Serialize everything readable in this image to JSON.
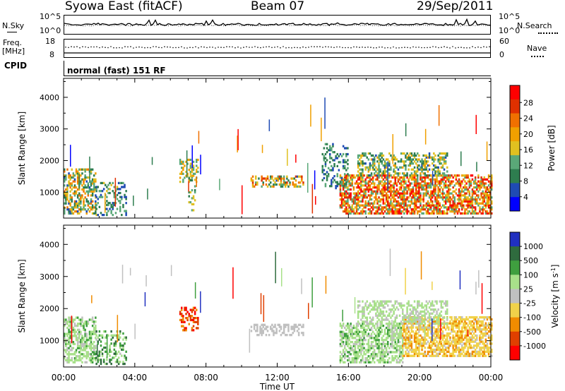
{
  "header": {
    "station": "Syowa East (fitACF)",
    "beam": "Beam 07",
    "date": "29/Sep/2011"
  },
  "left_labels": {
    "nsky": "N.Sky",
    "freq": "Freq.",
    "freq_unit": "[MHz]",
    "cpid": "CPID"
  },
  "right_labels": {
    "nsearch": "N.Search",
    "nave": "Nave"
  },
  "mode_text": "normal (fast) 151 RF",
  "noise_ticks_left": [
    "10^5",
    "10^0"
  ],
  "noise_ticks_right": [
    "10^5",
    "10^0"
  ],
  "freq_ticks": [
    "18",
    "8"
  ],
  "nave_ticks": [
    "60",
    "0"
  ],
  "colors": {
    "power_scale": [
      "#0000ff",
      "#1f4bb4",
      "#2e7d4f",
      "#5aa878",
      "#e0c020",
      "#f0a000",
      "#f07000",
      "#e03000",
      "#ff0000"
    ],
    "velocity_scale": [
      "#2030c0",
      "#2f6b3e",
      "#3f9f3f",
      "#a8e08a",
      "#c0c0c0",
      "#f0d24a",
      "#f08c00",
      "#e04000",
      "#ff0000"
    ]
  },
  "chart_data": [
    {
      "type": "heatmap",
      "name": "power",
      "xlabel": "Time UT",
      "ylabel": "Slant Range [km]",
      "x_ticks": [
        "00:00",
        "04:00",
        "08:00",
        "12:00",
        "16:00",
        "20:00",
        "00:00"
      ],
      "xlim": [
        0,
        24
      ],
      "ylim": [
        180,
        4600
      ],
      "y_ticks": [
        1000,
        2000,
        3000,
        4000
      ],
      "colorbar_label": "Power [dB]",
      "colorbar_ticks": [
        "4",
        "8",
        "12",
        "16",
        "20",
        "24",
        "28"
      ],
      "colorbar_range": [
        0,
        30
      ],
      "patches": [
        {
          "t0": 0.0,
          "t1": 1.8,
          "r0": 300,
          "r1": 1700,
          "density": 0.55,
          "vmin": 6,
          "vmax": 22
        },
        {
          "t0": 1.8,
          "t1": 3.5,
          "r0": 250,
          "r1": 1300,
          "density": 0.35,
          "vmin": 4,
          "vmax": 14
        },
        {
          "t0": 6.5,
          "t1": 7.5,
          "r0": 1300,
          "r1": 2000,
          "density": 0.4,
          "vmin": 10,
          "vmax": 20
        },
        {
          "t0": 7.0,
          "t1": 7.4,
          "r0": 400,
          "r1": 1500,
          "density": 0.25,
          "vmin": 8,
          "vmax": 16
        },
        {
          "t0": 10.5,
          "t1": 13.5,
          "r0": 1150,
          "r1": 1500,
          "density": 0.5,
          "vmin": 6,
          "vmax": 26
        },
        {
          "t0": 15.5,
          "t1": 24.0,
          "r0": 300,
          "r1": 1500,
          "density": 0.65,
          "vmin": 10,
          "vmax": 30
        },
        {
          "t0": 16.5,
          "t1": 21.5,
          "r0": 1500,
          "r1": 2200,
          "density": 0.45,
          "vmin": 6,
          "vmax": 18
        },
        {
          "t0": 14.5,
          "t1": 16.0,
          "r0": 1100,
          "r1": 2500,
          "density": 0.3,
          "vmin": 4,
          "vmax": 12
        }
      ]
    },
    {
      "type": "heatmap",
      "name": "velocity",
      "xlabel": "Time UT",
      "ylabel": "Slant Range [km]",
      "x_ticks": [
        "00:00",
        "04:00",
        "08:00",
        "12:00",
        "16:00",
        "20:00",
        "00:00"
      ],
      "xlim": [
        0,
        24
      ],
      "ylim": [
        180,
        4600
      ],
      "y_ticks": [
        1000,
        2000,
        3000,
        4000
      ],
      "colorbar_label": "Velocity [m s-1]",
      "colorbar_ticks": [
        "1000",
        "500",
        "100",
        "25",
        "-25",
        "-100",
        "-500",
        "-1000"
      ],
      "colorbar_range": [
        -1000,
        1000
      ],
      "patches": [
        {
          "t0": 0.0,
          "t1": 1.8,
          "r0": 300,
          "r1": 1700,
          "density": 0.55,
          "vmin": 50,
          "vmax": 400
        },
        {
          "t0": 1.8,
          "t1": 3.5,
          "r0": 250,
          "r1": 1300,
          "density": 0.35,
          "vmin": 100,
          "vmax": 700
        },
        {
          "t0": 6.5,
          "t1": 7.5,
          "r0": 1300,
          "r1": 2000,
          "density": 0.4,
          "vmin": -900,
          "vmax": -400
        },
        {
          "t0": 10.5,
          "t1": 13.5,
          "r0": 1150,
          "r1": 1500,
          "density": 0.5,
          "vmin": -20,
          "vmax": 20
        },
        {
          "t0": 15.5,
          "t1": 19.0,
          "r0": 300,
          "r1": 1500,
          "density": 0.6,
          "vmin": 50,
          "vmax": 400
        },
        {
          "t0": 19.0,
          "t1": 24.0,
          "r0": 500,
          "r1": 1700,
          "density": 0.65,
          "vmin": -400,
          "vmax": -80
        },
        {
          "t0": 16.5,
          "t1": 21.5,
          "r0": 1500,
          "r1": 2200,
          "density": 0.45,
          "vmin": 30,
          "vmax": 300
        }
      ]
    }
  ]
}
